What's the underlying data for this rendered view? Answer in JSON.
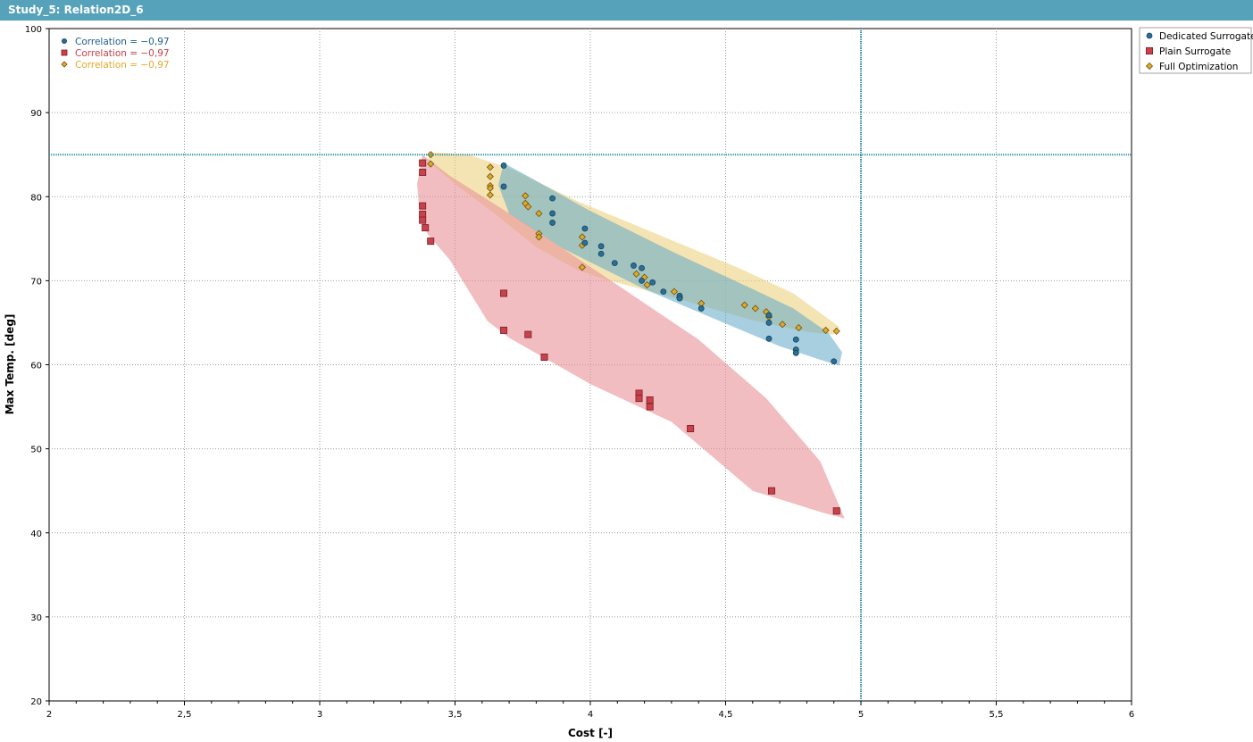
{
  "window": {
    "title": "Study_5: Relation2D_6"
  },
  "colors": {
    "blue": "#2a6f96",
    "red": "#c8414b",
    "yellow": "#e0aa2b",
    "refline": "#2b93a6",
    "titlebar": "#56a2bb"
  },
  "chart_data": {
    "type": "scatter",
    "title": "",
    "xlabel": "Cost [-]",
    "ylabel": "Max Temp. [deg]",
    "xlim": [
      2,
      6
    ],
    "ylim": [
      20,
      100
    ],
    "x_ticks": [
      "2",
      "2,5",
      "3",
      "3,5",
      "4",
      "4,5",
      "5",
      "5,5",
      "6"
    ],
    "y_ticks": [
      "20",
      "30",
      "40",
      "50",
      "60",
      "70",
      "80",
      "90",
      "100"
    ],
    "grid": true,
    "legend_position": "outside-right-top",
    "reference_lines": {
      "x": 5,
      "y": 85
    },
    "correlations": [
      {
        "text": "Correlation = −0,97",
        "color": "#1e5f8a"
      },
      {
        "text": "Correlation = −0,97",
        "color": "#c8414b"
      },
      {
        "text": "Correlation = −0,97",
        "color": "#e0aa2b"
      }
    ],
    "series": [
      {
        "name": "Dedicated Surrogate",
        "marker": "circle",
        "color": "#2a6f96",
        "band_color": "#5fa8c6",
        "points": [
          [
            3.68,
            83.7
          ],
          [
            3.68,
            81.2
          ],
          [
            3.86,
            79.8
          ],
          [
            3.86,
            78.0
          ],
          [
            3.86,
            76.9
          ],
          [
            3.98,
            76.2
          ],
          [
            3.98,
            74.5
          ],
          [
            4.04,
            74.1
          ],
          [
            4.04,
            73.2
          ],
          [
            4.09,
            72.1
          ],
          [
            4.16,
            71.8
          ],
          [
            4.19,
            71.5
          ],
          [
            4.19,
            70.0
          ],
          [
            4.23,
            69.8
          ],
          [
            4.27,
            68.7
          ],
          [
            4.33,
            68.2
          ],
          [
            4.33,
            67.9
          ],
          [
            4.41,
            66.7
          ],
          [
            4.66,
            65.9
          ],
          [
            4.66,
            65.0
          ],
          [
            4.66,
            63.1
          ],
          [
            4.76,
            63.0
          ],
          [
            4.76,
            61.8
          ],
          [
            4.76,
            61.4
          ],
          [
            4.9,
            60.4
          ]
        ],
        "band": [
          [
            3.68,
            84.0
          ],
          [
            3.76,
            82.6
          ],
          [
            4.0,
            78.3
          ],
          [
            4.3,
            73.5
          ],
          [
            4.6,
            69.0
          ],
          [
            4.75,
            66.7
          ],
          [
            4.88,
            63.8
          ],
          [
            4.93,
            61.5
          ],
          [
            4.92,
            59.9
          ],
          [
            4.85,
            60.6
          ],
          [
            4.7,
            62.2
          ],
          [
            4.5,
            64.9
          ],
          [
            4.2,
            69.0
          ],
          [
            3.9,
            73.8
          ],
          [
            3.7,
            78.0
          ],
          [
            3.66,
            81.4
          ]
        ]
      },
      {
        "name": "Plain Surrogate",
        "marker": "square",
        "color": "#c8414b",
        "band_color": "#e8959a",
        "points": [
          [
            3.38,
            84.0
          ],
          [
            3.38,
            82.9
          ],
          [
            3.38,
            78.9
          ],
          [
            3.38,
            77.9
          ],
          [
            3.38,
            77.2
          ],
          [
            3.39,
            76.3
          ],
          [
            3.41,
            74.7
          ],
          [
            3.68,
            68.5
          ],
          [
            3.68,
            64.1
          ],
          [
            3.77,
            63.6
          ],
          [
            3.83,
            60.9
          ],
          [
            4.18,
            56.6
          ],
          [
            4.18,
            56.0
          ],
          [
            4.22,
            55.8
          ],
          [
            4.22,
            55.0
          ],
          [
            4.37,
            52.4
          ],
          [
            4.67,
            45.0
          ],
          [
            4.91,
            42.6
          ]
        ],
        "band": [
          [
            3.38,
            85.0
          ],
          [
            3.48,
            82.5
          ],
          [
            3.75,
            77.0
          ],
          [
            4.1,
            69.5
          ],
          [
            4.4,
            63.0
          ],
          [
            4.65,
            56.0
          ],
          [
            4.85,
            48.5
          ],
          [
            4.94,
            41.7
          ],
          [
            4.86,
            42.4
          ],
          [
            4.6,
            45.0
          ],
          [
            4.3,
            53.2
          ],
          [
            4.0,
            57.7
          ],
          [
            3.7,
            63.2
          ],
          [
            3.62,
            65.2
          ],
          [
            3.48,
            72.5
          ],
          [
            3.4,
            75.5
          ],
          [
            3.37,
            77.5
          ],
          [
            3.36,
            81.5
          ]
        ]
      },
      {
        "name": "Full Optimization",
        "marker": "diamond",
        "color": "#e0aa2b",
        "band_color": "#efd384",
        "points": [
          [
            3.41,
            85.0
          ],
          [
            3.41,
            83.9
          ],
          [
            3.63,
            83.5
          ],
          [
            3.63,
            82.4
          ],
          [
            3.63,
            81.3
          ],
          [
            3.63,
            81.0
          ],
          [
            3.63,
            80.2
          ],
          [
            3.76,
            80.1
          ],
          [
            3.76,
            79.2
          ],
          [
            3.77,
            78.8
          ],
          [
            3.81,
            78.0
          ],
          [
            3.81,
            75.6
          ],
          [
            3.81,
            75.2
          ],
          [
            3.97,
            75.2
          ],
          [
            3.97,
            74.2
          ],
          [
            3.97,
            71.6
          ],
          [
            4.17,
            70.8
          ],
          [
            4.2,
            70.4
          ],
          [
            4.21,
            69.5
          ],
          [
            4.31,
            68.7
          ],
          [
            4.33,
            68.0
          ],
          [
            4.41,
            67.3
          ],
          [
            4.57,
            67.1
          ],
          [
            4.61,
            66.7
          ],
          [
            4.65,
            66.3
          ],
          [
            4.66,
            65.7
          ],
          [
            4.71,
            64.8
          ],
          [
            4.77,
            64.4
          ],
          [
            4.87,
            64.1
          ],
          [
            4.91,
            64.0
          ]
        ],
        "band": [
          [
            3.41,
            85.3
          ],
          [
            3.55,
            85.0
          ],
          [
            3.7,
            83.4
          ],
          [
            3.95,
            79.5
          ],
          [
            4.25,
            75.5
          ],
          [
            4.55,
            71.5
          ],
          [
            4.75,
            68.5
          ],
          [
            4.92,
            64.5
          ],
          [
            4.9,
            63.6
          ],
          [
            4.8,
            63.9
          ],
          [
            4.6,
            65.3
          ],
          [
            4.35,
            67.6
          ],
          [
            4.05,
            70.2
          ],
          [
            3.95,
            71.3
          ],
          [
            3.8,
            74.0
          ],
          [
            3.63,
            78.4
          ],
          [
            3.5,
            81.5
          ],
          [
            3.4,
            84.3
          ]
        ]
      }
    ]
  }
}
